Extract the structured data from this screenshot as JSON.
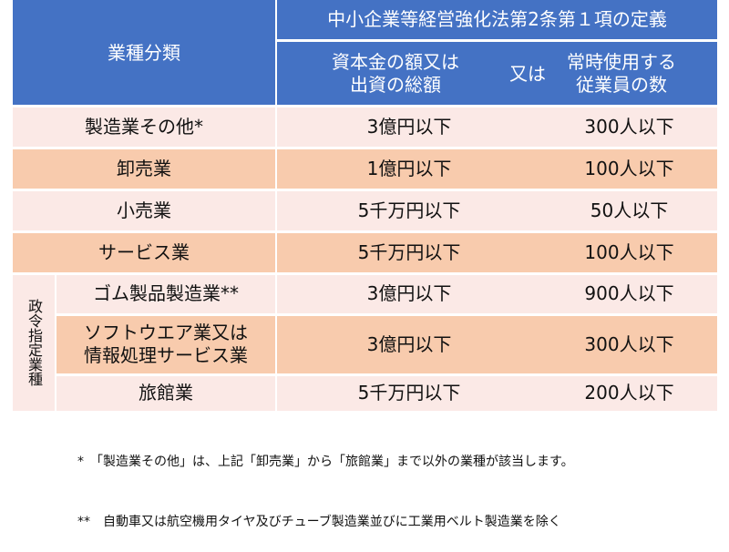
{
  "header": {
    "category": "業種分類",
    "definition": "中小企業等経営強化法第2条第１項の定義",
    "capital": "資本金の額又は\n出資の総額",
    "or": "又は",
    "employees": "常時使用する\n従業員の数"
  },
  "rows": [
    {
      "category": "製造業その他*",
      "capital": "3億円以下",
      "employees": "300人以下"
    },
    {
      "category": "卸売業",
      "capital": "1億円以下",
      "employees": "100人以下"
    },
    {
      "category": "小売業",
      "capital": "5千万円以下",
      "employees": "50人以下"
    },
    {
      "category": "サービス業",
      "capital": "5千万円以下",
      "employees": "100人以下"
    },
    {
      "category": "ゴム製品製造業**",
      "capital": "3億円以下",
      "employees": "900人以下"
    },
    {
      "category": "ソフトウエア業又は\n情報処理サービス業",
      "capital": "3億円以下",
      "employees": "300人以下"
    },
    {
      "category": "旅館業",
      "capital": "5千万円以下",
      "employees": "200人以下"
    }
  ],
  "group_label": "政令指定業種",
  "notes": [
    "*　「製造業その他」は、上記「卸売業」から「旅館業」まで以外の業種が該当します。",
    "**　自動車又は航空機用タイヤ及びチューブ製造業並びに工業用ベルト製造業を除く"
  ],
  "colors": {
    "header": "#4472c4",
    "row_light": "#fbe9e6",
    "row_dark": "#f8cbad"
  }
}
